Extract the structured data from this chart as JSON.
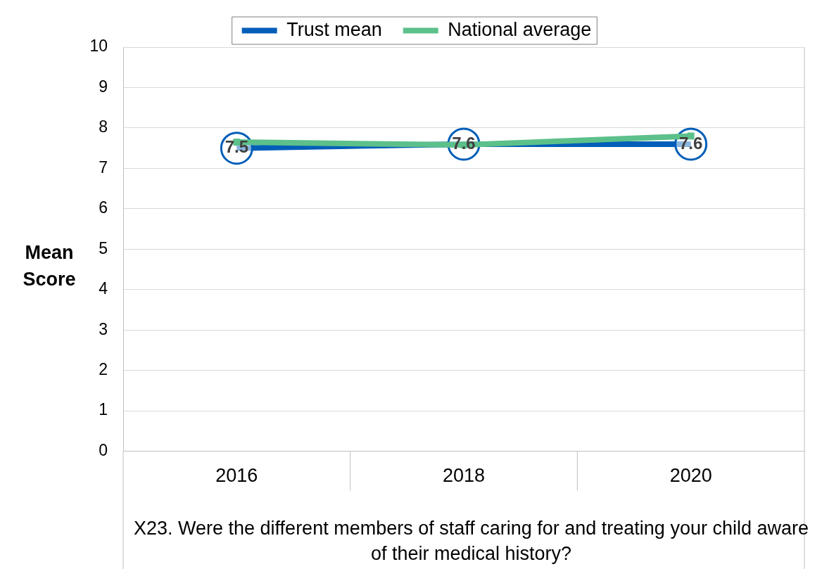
{
  "chart_data": {
    "type": "line",
    "xlabel": "X23. Were the different members of staff caring for and treating your child aware of their medical history?",
    "ylabel": "Mean Score",
    "categories": [
      "2016",
      "2018",
      "2020"
    ],
    "series": [
      {
        "name": "Trust mean",
        "color": "#005eb8",
        "marker": "circle",
        "values": [
          7.5,
          7.6,
          7.6
        ],
        "value_labels": [
          "7.5",
          "7.6",
          "7.6"
        ]
      },
      {
        "name": "National average",
        "color": "#5cc08a",
        "marker": "square",
        "values": [
          7.65,
          7.58,
          7.8
        ]
      }
    ],
    "ylim": [
      0,
      10
    ],
    "yticks": [
      0,
      1,
      2,
      3,
      4,
      5,
      6,
      7,
      8,
      9,
      10
    ],
    "grid": "y",
    "legend": "top",
    "line_style": "solid"
  }
}
